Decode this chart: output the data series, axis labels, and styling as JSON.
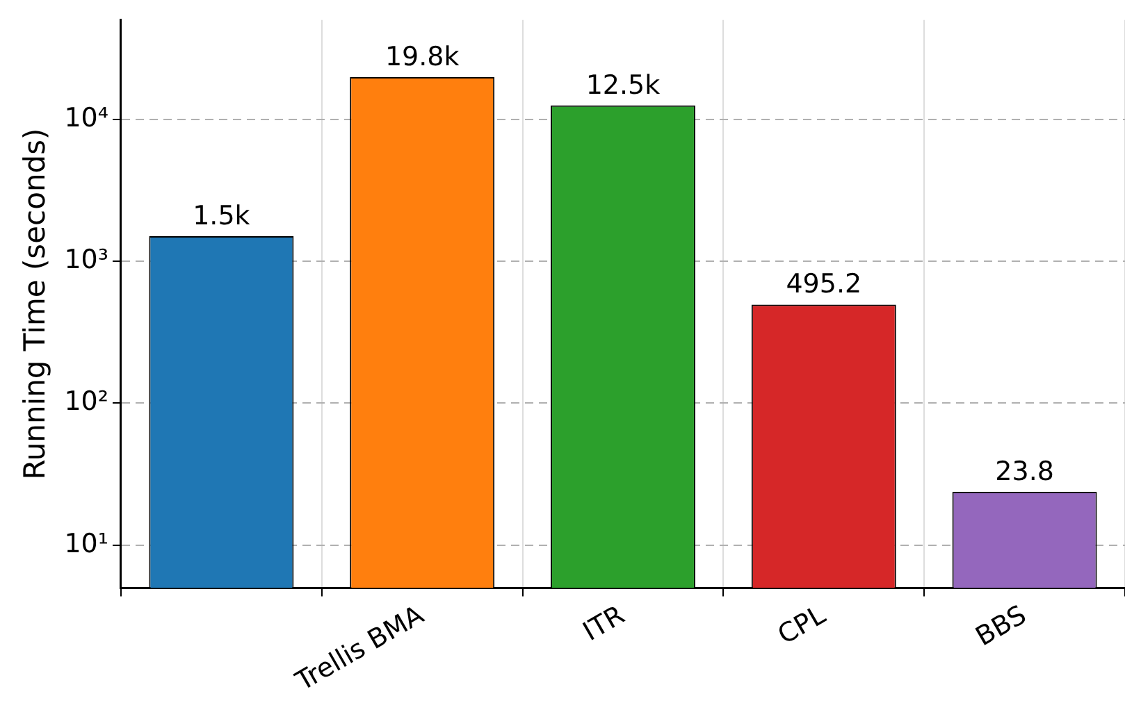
{
  "chart_data": {
    "type": "bar",
    "ylabel": "Running Time (seconds)",
    "categories": [
      null,
      "Trellis BMA",
      "ITR",
      "CPL",
      "BBS"
    ],
    "values": [
      1500,
      19800,
      12500,
      495.2,
      23.8
    ],
    "colors": [
      "#1f77b4",
      "#ff7f0e",
      "#2ca02c",
      "#d62728",
      "#9467bd"
    ],
    "value_labels": [
      "1.5k",
      "19.8k",
      "12.5k",
      "495.2",
      "23.8"
    ],
    "log": true,
    "ylim": [
      5,
      50000
    ],
    "yticks": [
      {
        "value": 10,
        "label": "10¹"
      },
      {
        "value": 100,
        "label": "10²"
      },
      {
        "value": 1000,
        "label": "10³"
      },
      {
        "value": 10000,
        "label": "10⁴"
      }
    ],
    "grid": true
  }
}
